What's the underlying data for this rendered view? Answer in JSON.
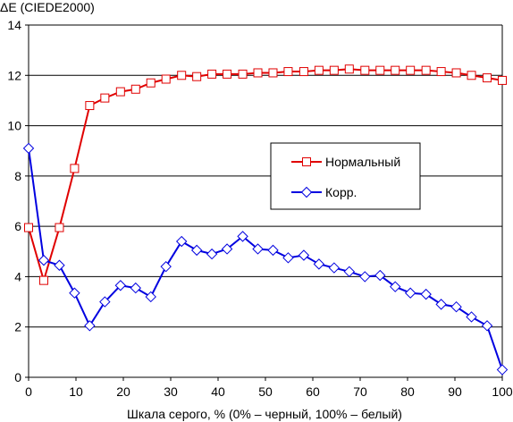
{
  "chart_data": {
    "type": "line",
    "ylabel": "ΔE (CIEDE2000)",
    "xlabel": "Шкала серого, % (0% – черный, 100% – белый)",
    "xlim": [
      0,
      100
    ],
    "ylim": [
      0,
      14
    ],
    "x_ticks": [
      0,
      10,
      20,
      30,
      40,
      50,
      60,
      70,
      80,
      90,
      100
    ],
    "y_ticks": [
      0,
      2,
      4,
      6,
      8,
      10,
      12,
      14
    ],
    "grid": "horizontal",
    "legend_position": "right-middle",
    "series": [
      {
        "name": "Нормальный",
        "color": "#e00000",
        "marker": "square",
        "x": [
          0,
          3.2,
          6.5,
          9.7,
          12.9,
          16.1,
          19.4,
          22.6,
          25.8,
          29.0,
          32.3,
          35.5,
          38.7,
          41.9,
          45.2,
          48.4,
          51.6,
          54.8,
          58.1,
          61.3,
          64.5,
          67.7,
          71.0,
          74.2,
          77.4,
          80.6,
          83.9,
          87.1,
          90.3,
          93.5,
          96.8,
          100
        ],
        "values": [
          5.95,
          3.85,
          5.95,
          8.3,
          10.8,
          11.1,
          11.35,
          11.45,
          11.7,
          11.85,
          12.0,
          11.95,
          12.05,
          12.05,
          12.05,
          12.1,
          12.1,
          12.15,
          12.15,
          12.2,
          12.2,
          12.25,
          12.2,
          12.2,
          12.2,
          12.2,
          12.2,
          12.15,
          12.1,
          12.0,
          11.9,
          11.8
        ]
      },
      {
        "name": "Корр.",
        "color": "#0000e0",
        "marker": "diamond",
        "x": [
          0,
          3.2,
          6.5,
          9.7,
          12.9,
          16.1,
          19.4,
          22.6,
          25.8,
          29.0,
          32.3,
          35.5,
          38.7,
          41.9,
          45.2,
          48.4,
          51.6,
          54.8,
          58.1,
          61.3,
          64.5,
          67.7,
          71.0,
          74.2,
          77.4,
          80.6,
          83.9,
          87.1,
          90.3,
          93.5,
          96.8,
          100
        ],
        "values": [
          9.1,
          4.65,
          4.45,
          3.35,
          2.05,
          3.0,
          3.65,
          3.55,
          3.2,
          4.4,
          5.4,
          5.05,
          4.9,
          5.1,
          5.6,
          5.1,
          5.05,
          4.75,
          4.85,
          4.5,
          4.35,
          4.2,
          4.0,
          4.05,
          3.6,
          3.35,
          3.3,
          2.9,
          2.8,
          2.4,
          2.05,
          0.3
        ]
      }
    ]
  }
}
